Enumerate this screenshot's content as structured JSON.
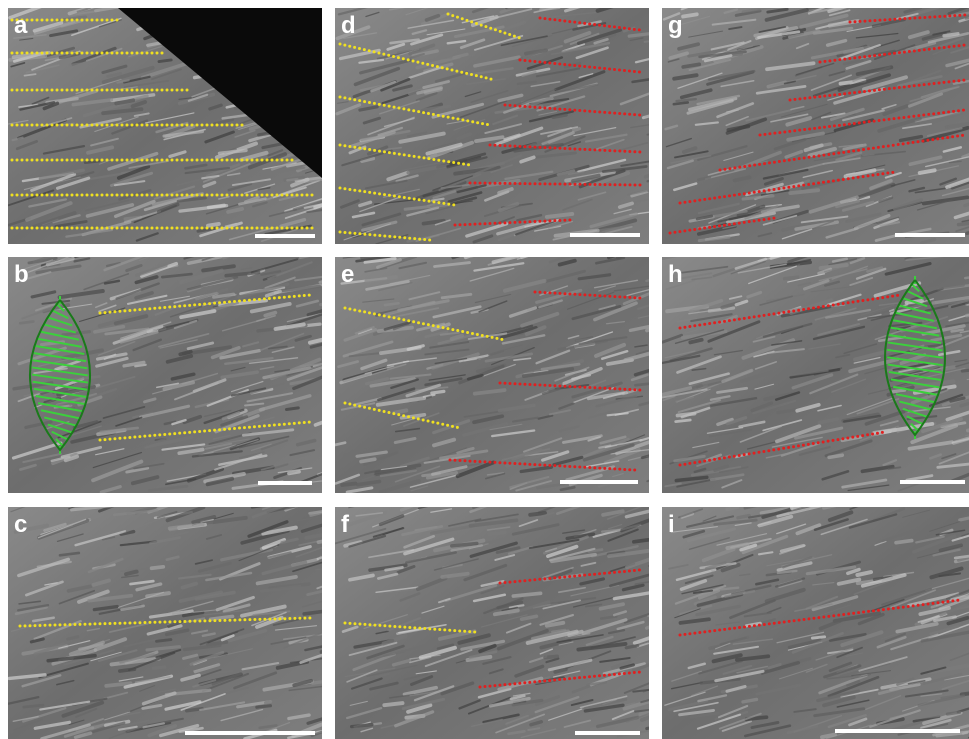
{
  "panels": [
    {
      "label": "a"
    },
    {
      "label": "b"
    },
    {
      "label": "c"
    },
    {
      "label": "d"
    },
    {
      "label": "e"
    },
    {
      "label": "f"
    },
    {
      "label": "g"
    },
    {
      "label": "h"
    },
    {
      "label": "i"
    }
  ]
}
